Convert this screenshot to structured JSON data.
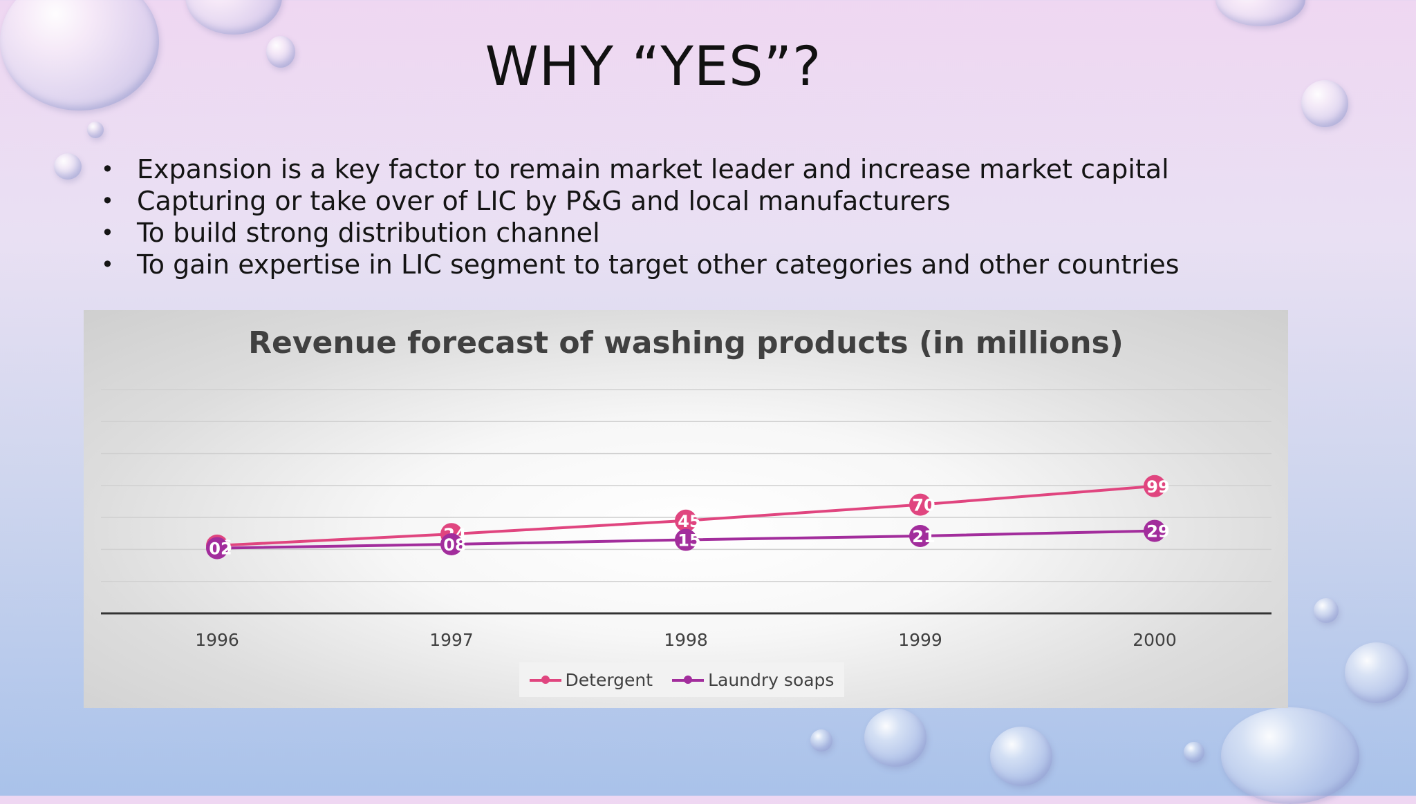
{
  "slide": {
    "title": "WHY “YES”?",
    "bullets": [
      "Expansion is a key factor to remain market leader and increase market capital",
      "Capturing or take over of LIC by P&G and local manufacturers",
      "To build strong distribution channel",
      "To gain expertise in LIC segment to target other categories and other countries"
    ]
  },
  "chart_data": {
    "type": "line",
    "title": "Revenue forecast of washing products (in millions)",
    "categories": [
      "1996",
      "1997",
      "1998",
      "1999",
      "2000"
    ],
    "series": [
      {
        "name": "Detergent",
        "color": "#e0457f",
        "values": [
          0.6,
          2.4,
          4.5,
          7.0,
          9.9
        ],
        "labels": [
          "06",
          "24",
          "45",
          "70",
          "99"
        ]
      },
      {
        "name": "Laundry soaps",
        "color": "#a22d9c",
        "values": [
          0.2,
          0.8,
          1.5,
          2.1,
          2.9
        ],
        "labels": [
          "02",
          "08",
          "15",
          "21",
          "29"
        ]
      }
    ],
    "ylim": [
      -10,
      25
    ],
    "grid": true,
    "legend": "bottom"
  }
}
